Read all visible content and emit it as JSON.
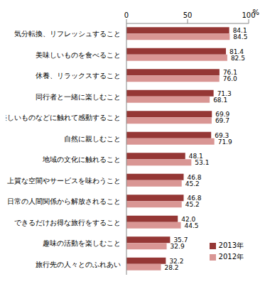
{
  "chart_data": {
    "type": "bar",
    "orientation": "horizontal",
    "x_label": "%",
    "categories": [
      "気分転換、リフレッシュすること",
      "美味しいものを食べること",
      "休養、リラックスすること",
      "同行者と一緒に楽しむこと",
      "美しいものなどに触れて感動すること",
      "自然に親しむこと",
      "地域の文化に触れること",
      "上質な空間やサービスを味わうこと",
      "日常の人間関係から解放されること",
      "できるだけお得な旅行をすること",
      "趣味の活動を楽しむこと",
      "旅行先の人々とのふれあい"
    ],
    "series": [
      {
        "name": "2013年",
        "color": "#953735",
        "values": [
          84.1,
          81.4,
          76.1,
          71.3,
          69.9,
          69.3,
          48.1,
          46.8,
          46.8,
          42.0,
          35.7,
          32.2
        ],
        "value_labels": [
          "84.1",
          "81.4",
          "76.1",
          "71.3",
          "69.9",
          "69.3",
          "48.1",
          "46.8",
          "46.8",
          "42.0",
          "35.7",
          "32.2"
        ]
      },
      {
        "name": "2012年",
        "color": "#D99694",
        "values": [
          84.5,
          82.5,
          76.0,
          68.1,
          69.7,
          71.9,
          53.1,
          45.2,
          45.2,
          44.5,
          32.9,
          28.2
        ],
        "value_labels": [
          "84.5",
          "82.5",
          "76.0",
          "68.1",
          "69.7",
          "71.9",
          "53.1",
          "45.2",
          "45.2",
          "44.5",
          "32.9",
          "28.2"
        ]
      }
    ],
    "xlim": [
      0,
      100
    ],
    "xticks": [
      0,
      50,
      100
    ],
    "grid": false,
    "legend": "lower right",
    "data_labels": true
  }
}
